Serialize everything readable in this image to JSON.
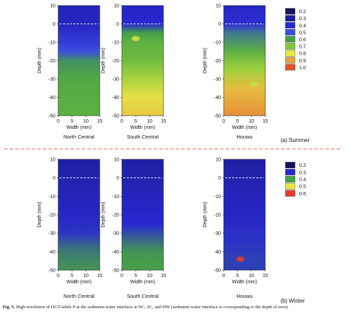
{
  "caption": {
    "label": "Fig. 5.",
    "text": "High-resolution of DGT-labile P at the sediment-water interface at NC, SC, and HW (sediment-water interface is corresponding to the depth of zero)."
  },
  "chart_data": [
    {
      "type": "heatmap",
      "panel_label": "(a)  Summer",
      "ylabel": "Depth (mm)",
      "xlabel": "Width (mm)",
      "xlim": [
        0,
        15
      ],
      "ylim": [
        -50,
        10
      ],
      "x_ticks": [
        "0",
        "5",
        "10",
        "15"
      ],
      "y_ticks": [
        "10",
        "0",
        "-10",
        "-20",
        "-30",
        "-40",
        "-50"
      ],
      "interface_depth": 0,
      "colorbar": {
        "labels": [
          "0.2",
          "0.3",
          "0.4",
          "0.5",
          "0.6",
          "0.7",
          "0.8",
          "0.9",
          "1.0"
        ],
        "colors": [
          "#14145a",
          "#1e1ea0",
          "#2828d2",
          "#3c50dc",
          "#46a046",
          "#82c83c",
          "#e6e646",
          "#e6a03c",
          "#e65028"
        ]
      },
      "site_values": [
        0.2,
        0.3,
        0.4,
        0.5,
        0.6,
        0.7,
        0.8,
        0.9,
        1.0
      ],
      "series": [
        {
          "name": "North Central",
          "profile": [
            {
              "depth": 10,
              "value": 0.35
            },
            {
              "depth": 0,
              "value": 0.37
            },
            {
              "depth": -10,
              "value": 0.45
            },
            {
              "depth": -15,
              "value": 0.5
            },
            {
              "depth": -20,
              "value": 0.58
            },
            {
              "depth": -30,
              "value": 0.62
            },
            {
              "depth": -40,
              "value": 0.63
            },
            {
              "depth": -50,
              "value": 0.64
            }
          ],
          "hotspots": []
        },
        {
          "name": "South Central",
          "profile": [
            {
              "depth": 10,
              "value": 0.37
            },
            {
              "depth": 0,
              "value": 0.4
            },
            {
              "depth": -5,
              "value": 0.6
            },
            {
              "depth": -10,
              "value": 0.64
            },
            {
              "depth": -20,
              "value": 0.67
            },
            {
              "depth": -30,
              "value": 0.74
            },
            {
              "depth": -40,
              "value": 0.81
            },
            {
              "depth": -50,
              "value": 0.84
            }
          ],
          "hotspots": [
            {
              "x": 5,
              "depth": -8,
              "value": 0.78
            }
          ]
        },
        {
          "name": "Houwu",
          "profile": [
            {
              "depth": 10,
              "value": 0.37
            },
            {
              "depth": 0,
              "value": 0.42
            },
            {
              "depth": -5,
              "value": 0.55
            },
            {
              "depth": -15,
              "value": 0.64
            },
            {
              "depth": -25,
              "value": 0.73
            },
            {
              "depth": -35,
              "value": 0.86
            },
            {
              "depth": -45,
              "value": 0.9
            },
            {
              "depth": -50,
              "value": 0.92
            }
          ],
          "hotspots": [
            {
              "x": 11,
              "depth": -33,
              "value": 0.77
            }
          ]
        }
      ]
    },
    {
      "type": "heatmap",
      "panel_label": "(b)   Winter",
      "ylabel": "Depth (mm)",
      "xlabel": "Width (mm)",
      "xlim": [
        0,
        15
      ],
      "ylim": [
        -50,
        10
      ],
      "x_ticks": [
        "0",
        "5",
        "10",
        "15"
      ],
      "y_ticks": [
        "10",
        "0",
        "-10",
        "-20",
        "-30",
        "-40",
        "-50"
      ],
      "interface_depth": 0,
      "colorbar": {
        "labels": [
          "0.2",
          "0.3",
          "0.4",
          "0.5",
          "0.6"
        ],
        "colors": [
          "#14145a",
          "#2828d2",
          "#46a046",
          "#e6e646",
          "#e63c28"
        ]
      },
      "site_values": [
        0.2,
        0.3,
        0.4,
        0.5,
        0.6
      ],
      "series": [
        {
          "name": "North Central",
          "profile": [
            {
              "depth": 10,
              "value": 0.26
            },
            {
              "depth": 0,
              "value": 0.27
            },
            {
              "depth": -20,
              "value": 0.29
            },
            {
              "depth": -30,
              "value": 0.31
            },
            {
              "depth": -38,
              "value": 0.36
            },
            {
              "depth": -45,
              "value": 0.38
            },
            {
              "depth": -50,
              "value": 0.39
            }
          ],
          "hotspots": []
        },
        {
          "name": "South Central",
          "profile": [
            {
              "depth": 10,
              "value": 0.26
            },
            {
              "depth": 0,
              "value": 0.27
            },
            {
              "depth": -25,
              "value": 0.3
            },
            {
              "depth": -33,
              "value": 0.35
            },
            {
              "depth": -40,
              "value": 0.39
            },
            {
              "depth": -50,
              "value": 0.4
            }
          ],
          "hotspots": []
        },
        {
          "name": "Houwu",
          "profile": [
            {
              "depth": 10,
              "value": 0.26
            },
            {
              "depth": 0,
              "value": 0.27
            },
            {
              "depth": -20,
              "value": 0.29
            },
            {
              "depth": -35,
              "value": 0.31
            },
            {
              "depth": -45,
              "value": 0.32
            },
            {
              "depth": -50,
              "value": 0.32
            }
          ],
          "hotspots": [
            {
              "x": 6,
              "depth": -44,
              "value": 0.62
            }
          ]
        }
      ]
    }
  ]
}
